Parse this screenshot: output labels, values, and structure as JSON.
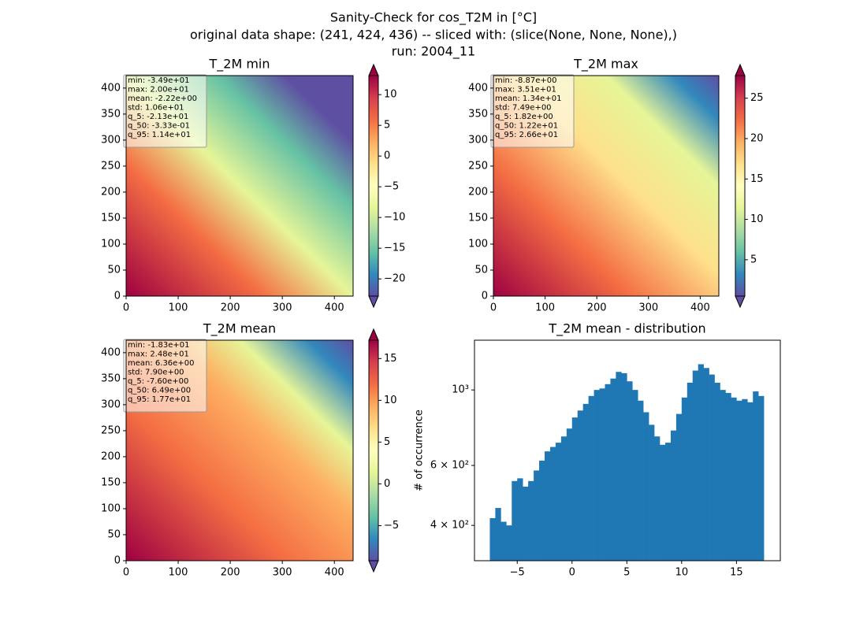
{
  "figure_title": [
    "Sanity-Check for cos_T2M in [°C]",
    "original data shape: (241, 424, 436) -- sliced with: (slice(None, None, None),)",
    "run: 2004_11"
  ],
  "chart_data": [
    {
      "type": "image",
      "title": "T_2M min",
      "xlim": [
        0,
        436
      ],
      "ylim": [
        0,
        424
      ],
      "xticks": [
        0,
        100,
        200,
        300,
        400
      ],
      "yticks": [
        0,
        50,
        100,
        150,
        200,
        250,
        300,
        350,
        400
      ],
      "colorbar": {
        "lim": [
          -22.8,
          13.1
        ],
        "ticks": [
          {
            "value": -20,
            "label": "−20"
          },
          {
            "value": -15,
            "label": "−15"
          },
          {
            "value": -10,
            "label": "−10"
          },
          {
            "value": -5,
            "label": "−5"
          },
          0,
          5,
          10
        ]
      },
      "stats": [
        "min: -3.49e+01",
        "max: 2.00e+01",
        "mean: -2.22e+00",
        "std: 1.06e+01",
        "q_5: -2.13e+01",
        "q_50: -3.33e-01",
        "q_95: 1.14e+01"
      ]
    },
    {
      "type": "image",
      "title": "T_2M max",
      "xlim": [
        0,
        436
      ],
      "ylim": [
        0,
        424
      ],
      "xticks": [
        0,
        100,
        200,
        300,
        400
      ],
      "yticks": [
        0,
        50,
        100,
        150,
        200,
        250,
        300,
        350,
        400
      ],
      "colorbar": {
        "lim": [
          0.5,
          27.8
        ],
        "ticks": [
          5,
          10,
          15,
          20,
          25
        ]
      },
      "stats": [
        "min: -8.87e+00",
        "max: 3.51e+01",
        "mean: 1.34e+01",
        "std: 7.49e+00",
        "q_5: 1.82e+00",
        "q_50: 1.22e+01",
        "q_95: 2.66e+01"
      ]
    },
    {
      "type": "image",
      "title": "T_2M mean",
      "xlim": [
        0,
        436
      ],
      "ylim": [
        0,
        424
      ],
      "xticks": [
        0,
        100,
        200,
        300,
        400
      ],
      "yticks": [
        0,
        50,
        100,
        150,
        200,
        250,
        300,
        350,
        400
      ],
      "colorbar": {
        "lim": [
          -9.2,
          17.2
        ],
        "ticks": [
          {
            "value": -5,
            "label": "−5"
          },
          0,
          5,
          10,
          15
        ]
      },
      "stats": [
        "min: -1.83e+01",
        "max: 2.48e+01",
        "mean: 6.36e+00",
        "std: 7.90e+00",
        "q_5: -7.60e+00",
        "q_50: 6.49e+00",
        "q_95: 1.77e+01"
      ]
    },
    {
      "type": "histogram",
      "title": "T_2M mean - distribution",
      "ylabel": "# of occurrence",
      "color": "#1f77b4",
      "bins": [
        -7.5,
        -7,
        -6.5,
        -6,
        -5.5,
        -5,
        -4.5,
        -4,
        -3.5,
        -3,
        -2.5,
        -2,
        -1.5,
        -1,
        -0.5,
        0,
        0.5,
        1,
        1.5,
        2,
        2.5,
        3,
        3.5,
        4,
        4.5,
        5,
        5.5,
        6,
        6.5,
        7,
        7.5,
        8,
        8.5,
        9,
        9.5,
        10,
        10.5,
        11,
        11.5,
        12,
        12.5,
        13,
        13.5,
        14,
        14.5,
        15,
        15.5,
        16,
        16.5,
        17,
        17.5
      ],
      "counts": [
        420,
        450,
        410,
        400,
        540,
        550,
        520,
        540,
        580,
        620,
        660,
        680,
        700,
        730,
        770,
        830,
        870,
        910,
        960,
        1000,
        1010,
        1040,
        1080,
        1130,
        1120,
        1060,
        1000,
        930,
        860,
        790,
        730,
        690,
        700,
        760,
        850,
        950,
        1050,
        1140,
        1190,
        1160,
        1110,
        1050,
        1000,
        980,
        950,
        930,
        940,
        920,
        990,
        960
      ],
      "xlim": [
        -8.9,
        19.0
      ],
      "xticks": [
        {
          "value": -5,
          "label": "−5"
        },
        0,
        5,
        10,
        15
      ],
      "ylim": [
        315,
        1400
      ],
      "yscale": "log",
      "yticks": [
        {
          "value": 400,
          "label": "4 × 10²"
        },
        {
          "value": 600,
          "label": "6 × 10²"
        },
        {
          "value": 1000,
          "label": "10³"
        }
      ]
    }
  ]
}
